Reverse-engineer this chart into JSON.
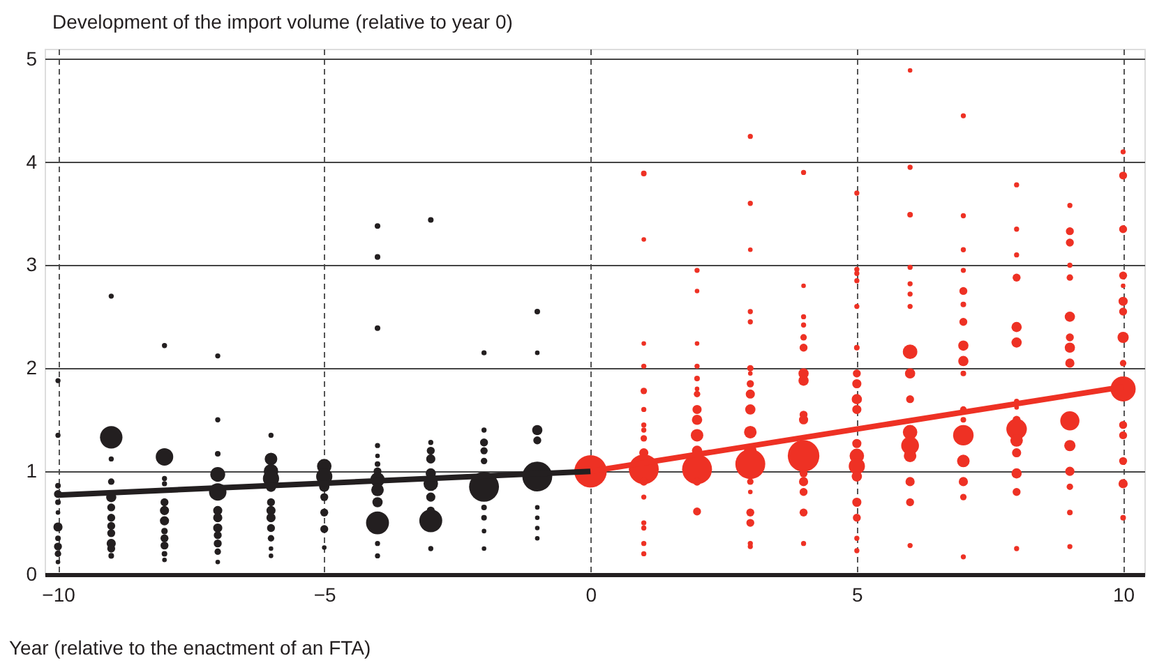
{
  "chart_data": {
    "type": "bubble",
    "ylabel": "Development of the import volume (relative to year 0)",
    "xlabel": "Year (relative to the enactment of an FTA)",
    "xlim": [
      -10.25,
      10.4
    ],
    "xticks": [
      -10,
      -5,
      0,
      5,
      10
    ],
    "ylim": [
      0,
      5.1
    ],
    "yticks": [
      0,
      1,
      2,
      3,
      4,
      5
    ],
    "grid": true,
    "series": [
      {
        "color": "#231f20",
        "x": [
          -10,
          -10,
          -10,
          -10,
          -10,
          -10,
          -10,
          -10,
          -10,
          -10,
          -10,
          -9,
          -9,
          -9,
          -9,
          -9,
          -9,
          -9,
          -9,
          -9,
          -9,
          -9,
          -9,
          -8,
          -8,
          -8,
          -8,
          -8,
          -8,
          -8,
          -8,
          -8,
          -8,
          -8,
          -8,
          -7,
          -7,
          -7,
          -7,
          -7,
          -7,
          -7,
          -7,
          -7,
          -7,
          -7,
          -7,
          -6,
          -6,
          -6,
          -6,
          -6,
          -6,
          -6,
          -6,
          -6,
          -6,
          -6,
          -6,
          -5,
          -5,
          -5,
          -5,
          -5,
          -5,
          -5,
          -4,
          -4,
          -4,
          -4,
          -4,
          -4,
          -4,
          -4,
          -4,
          -4,
          -4,
          -4,
          -4,
          -3,
          -3,
          -3,
          -3,
          -3,
          -3,
          -3,
          -3,
          -3,
          -3,
          -2,
          -2,
          -2,
          -2,
          -2,
          -2,
          -2,
          -2,
          -2,
          -2,
          -1,
          -1,
          -1,
          -1,
          -1,
          -1,
          -1,
          -1,
          -1
        ],
        "values": [
          1.88,
          1.35,
          0.86,
          0.78,
          0.7,
          0.6,
          0.46,
          0.35,
          0.27,
          0.2,
          0.12,
          2.7,
          1.33,
          1.12,
          0.9,
          0.75,
          0.65,
          0.55,
          0.47,
          0.4,
          0.3,
          0.25,
          0.18,
          2.22,
          1.14,
          0.93,
          0.88,
          0.7,
          0.62,
          0.52,
          0.42,
          0.35,
          0.28,
          0.2,
          0.14,
          2.12,
          1.5,
          1.17,
          0.97,
          0.8,
          0.62,
          0.55,
          0.45,
          0.38,
          0.3,
          0.22,
          0.12,
          1.35,
          1.12,
          1.0,
          0.93,
          0.85,
          0.7,
          0.62,
          0.55,
          0.45,
          0.35,
          0.25,
          0.18,
          1.05,
          0.95,
          0.85,
          0.75,
          0.6,
          0.44,
          0.26,
          3.38,
          3.08,
          2.39,
          1.25,
          1.15,
          1.07,
          1.0,
          0.92,
          0.82,
          0.7,
          0.5,
          0.3,
          0.18,
          3.44,
          1.28,
          1.2,
          1.12,
          0.98,
          0.88,
          0.75,
          0.62,
          0.52,
          0.25,
          2.15,
          1.4,
          1.28,
          1.2,
          1.1,
          0.85,
          0.65,
          0.55,
          0.42,
          0.25,
          2.55,
          2.15,
          1.4,
          1.3,
          0.95,
          0.65,
          0.55,
          0.45,
          0.35
        ],
        "sizes": [
          0.025,
          0.025,
          0.03,
          0.06,
          0.03,
          0.02,
          0.08,
          0.03,
          0.06,
          0.04,
          0.02,
          0.025,
          0.48,
          0.025,
          0.04,
          0.1,
          0.06,
          0.06,
          0.06,
          0.06,
          0.08,
          0.06,
          0.03,
          0.025,
          0.29,
          0.025,
          0.025,
          0.06,
          0.08,
          0.08,
          0.04,
          0.06,
          0.06,
          0.03,
          0.02,
          0.025,
          0.025,
          0.03,
          0.21,
          0.29,
          0.08,
          0.08,
          0.08,
          0.06,
          0.06,
          0.04,
          0.02,
          0.025,
          0.15,
          0.2,
          0.25,
          0.1,
          0.06,
          0.08,
          0.08,
          0.06,
          0.04,
          0.02,
          0.02,
          0.2,
          0.25,
          0.1,
          0.06,
          0.06,
          0.06,
          0.02,
          0.03,
          0.03,
          0.03,
          0.025,
          0.02,
          0.03,
          0.06,
          0.2,
          0.15,
          0.1,
          0.5,
          0.025,
          0.025,
          0.03,
          0.025,
          0.06,
          0.08,
          0.1,
          0.2,
          0.08,
          0.06,
          0.5,
          0.025,
          0.025,
          0.025,
          0.06,
          0.05,
          0.04,
          0.85,
          0.03,
          0.03,
          0.02,
          0.02,
          0.03,
          0.02,
          0.1,
          0.06,
          0.85,
          0.02,
          0.02,
          0.02,
          0.02
        ]
      },
      {
        "color": "#ee3124",
        "x": [
          0,
          1,
          1,
          1,
          1,
          1,
          1,
          1,
          1,
          1,
          1,
          1,
          1,
          1,
          1,
          1,
          1,
          1,
          2,
          2,
          2,
          2,
          2,
          2,
          2,
          2,
          2,
          2,
          2,
          2,
          2,
          2,
          3,
          3,
          3,
          3,
          3,
          3,
          3,
          3,
          3,
          3,
          3,
          3,
          3,
          3,
          3,
          3,
          3,
          3,
          3,
          4,
          4,
          4,
          4,
          4,
          4,
          4,
          4,
          4,
          4,
          4,
          4,
          4,
          4,
          4,
          4,
          5,
          5,
          5,
          5,
          5,
          5,
          5,
          5,
          5,
          5,
          5,
          5,
          5,
          5,
          5,
          5,
          5,
          5,
          6,
          6,
          6,
          6,
          6,
          6,
          6,
          6,
          6,
          6,
          6,
          6,
          6,
          6,
          6,
          6,
          7,
          7,
          7,
          7,
          7,
          7,
          7,
          7,
          7,
          7,
          7,
          7,
          7,
          7,
          7,
          7,
          7,
          8,
          8,
          8,
          8,
          8,
          8,
          8,
          8,
          8,
          8,
          8,
          8,
          8,
          8,
          8,
          9,
          9,
          9,
          9,
          9,
          9,
          9,
          9,
          9,
          9,
          9,
          9,
          9,
          9,
          9,
          10,
          10,
          10,
          10,
          10,
          10,
          10,
          10,
          10,
          10,
          10,
          10,
          10,
          10,
          10
        ],
        "values": [
          1.0,
          3.89,
          3.25,
          2.24,
          2.02,
          1.78,
          1.6,
          1.45,
          1.4,
          1.32,
          1.18,
          1.02,
          0.9,
          0.75,
          0.5,
          0.45,
          0.3,
          0.2,
          2.95,
          2.75,
          2.24,
          2.02,
          1.9,
          1.8,
          1.75,
          1.6,
          1.5,
          1.35,
          1.2,
          1.02,
          0.9,
          0.61,
          4.25,
          3.6,
          3.15,
          2.55,
          2.45,
          2.0,
          1.95,
          1.85,
          1.75,
          1.6,
          1.38,
          1.2,
          1.07,
          0.9,
          0.8,
          0.6,
          0.5,
          0.3,
          0.27,
          3.9,
          2.8,
          2.5,
          2.42,
          2.3,
          2.2,
          1.95,
          1.88,
          1.55,
          1.5,
          1.15,
          0.98,
          0.9,
          0.8,
          0.6,
          0.3,
          3.7,
          2.96,
          2.92,
          2.85,
          2.6,
          2.2,
          1.95,
          1.85,
          1.7,
          1.6,
          1.27,
          1.15,
          1.05,
          0.95,
          0.7,
          0.55,
          0.35,
          0.23,
          4.89,
          3.95,
          3.49,
          2.98,
          2.82,
          2.72,
          2.6,
          2.16,
          1.95,
          1.7,
          1.38,
          1.25,
          1.15,
          0.9,
          0.7,
          0.28,
          4.45,
          3.48,
          3.15,
          2.95,
          2.75,
          2.62,
          2.45,
          2.22,
          2.07,
          1.95,
          1.6,
          1.5,
          1.35,
          1.1,
          0.9,
          0.75,
          0.17,
          3.78,
          3.35,
          3.1,
          2.88,
          2.4,
          2.25,
          1.68,
          1.62,
          1.5,
          1.41,
          1.3,
          1.18,
          0.98,
          0.8,
          0.25,
          3.58,
          3.33,
          3.22,
          3.0,
          2.88,
          2.5,
          2.3,
          2.2,
          2.05,
          1.49,
          1.25,
          1.0,
          0.85,
          0.6,
          0.27,
          4.1,
          3.87,
          3.35,
          2.9,
          2.8,
          2.65,
          2.55,
          2.3,
          2.05,
          1.8,
          1.45,
          1.35,
          1.1,
          0.88,
          0.55
        ],
        "sizes": [
          1,
          0.03,
          0.02,
          0.02,
          0.025,
          0.04,
          0.025,
          0.025,
          0.025,
          0.04,
          0.08,
          0.85,
          0.06,
          0.025,
          0.025,
          0.025,
          0.025,
          0.025,
          0.025,
          0.02,
          0.02,
          0.025,
          0.03,
          0.02,
          0.04,
          0.08,
          0.1,
          0.15,
          0.1,
          0.85,
          0.06,
          0.06,
          0.025,
          0.025,
          0.02,
          0.025,
          0.025,
          0.04,
          0.02,
          0.05,
          0.08,
          0.1,
          0.15,
          0.15,
          0.85,
          0.04,
          0.02,
          0.06,
          0.06,
          0.025,
          0.025,
          0.025,
          0.02,
          0.025,
          0.025,
          0.04,
          0.06,
          0.1,
          0.1,
          0.06,
          0.08,
          0.95,
          0.06,
          0.08,
          0.06,
          0.06,
          0.025,
          0.025,
          0.025,
          0.025,
          0.025,
          0.025,
          0.03,
          0.06,
          0.08,
          0.1,
          0.08,
          0.08,
          0.2,
          0.25,
          0.1,
          0.08,
          0.06,
          0.025,
          0.025,
          0.02,
          0.025,
          0.03,
          0.025,
          0.025,
          0.025,
          0.025,
          0.2,
          0.1,
          0.06,
          0.2,
          0.3,
          0.15,
          0.08,
          0.06,
          0.025,
          0.025,
          0.025,
          0.025,
          0.025,
          0.06,
          0.03,
          0.06,
          0.1,
          0.1,
          0.03,
          0.04,
          0.03,
          0.4,
          0.15,
          0.08,
          0.04,
          0.025,
          0.025,
          0.025,
          0.025,
          0.06,
          0.1,
          0.1,
          0.025,
          0.02,
          0.06,
          0.4,
          0.15,
          0.08,
          0.1,
          0.06,
          0.025,
          0.025,
          0.06,
          0.06,
          0.025,
          0.04,
          0.1,
          0.06,
          0.1,
          0.08,
          0.35,
          0.12,
          0.08,
          0.04,
          0.03,
          0.025,
          0.025,
          0.06,
          0.06,
          0.06,
          0.02,
          0.08,
          0.06,
          0.12,
          0.04,
          0.6,
          0.06,
          0.06,
          0.06,
          0.08,
          0.03
        ]
      },
      {
        "type": "line",
        "color": "#231f20",
        "x": [
          -10,
          0
        ],
        "values": [
          0.77,
          1.0
        ]
      },
      {
        "type": "line",
        "color": "#ee3124",
        "x": [
          0,
          10
        ],
        "values": [
          1.0,
          1.82
        ]
      }
    ]
  }
}
